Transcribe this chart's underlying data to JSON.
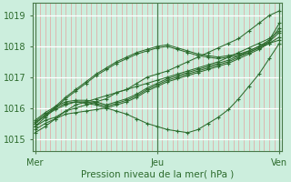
{
  "background_color": "#cceedd",
  "plot_bg_color": "#cceedd",
  "line_color": "#2d6b2d",
  "vline_color": "#4a7a4a",
  "minor_grid_color": "#e89090",
  "major_grid_color": "#ffffff",
  "xlabel_text": "Pression niveau de la mer( hPa )",
  "xtick_labels": [
    "Mer",
    "Jeu",
    "Ven"
  ],
  "xtick_positions": [
    0,
    48,
    96
  ],
  "ylim": [
    1014.6,
    1019.4
  ],
  "xlim": [
    -1,
    97
  ],
  "yticks": [
    1015,
    1016,
    1017,
    1018,
    1019
  ],
  "n_points": 25,
  "series": [
    [
      1015.4,
      1015.6,
      1015.7,
      1015.9,
      1016.0,
      1016.1,
      1016.2,
      1016.3,
      1016.5,
      1016.6,
      1016.8,
      1017.0,
      1017.1,
      1017.2,
      1017.35,
      1017.5,
      1017.65,
      1017.8,
      1017.95,
      1018.1,
      1018.25,
      1018.5,
      1018.75,
      1019.0,
      1019.15
    ],
    [
      1015.3,
      1015.5,
      1015.65,
      1015.8,
      1015.85,
      1015.9,
      1015.95,
      1016.0,
      1015.9,
      1015.8,
      1015.65,
      1015.5,
      1015.4,
      1015.3,
      1015.25,
      1015.2,
      1015.3,
      1015.5,
      1015.7,
      1015.95,
      1016.3,
      1016.7,
      1017.1,
      1017.6,
      1018.1
    ],
    [
      1015.5,
      1015.75,
      1015.95,
      1016.1,
      1016.2,
      1016.15,
      1016.1,
      1016.0,
      1016.1,
      1016.2,
      1016.35,
      1016.55,
      1016.7,
      1016.85,
      1016.95,
      1017.05,
      1017.15,
      1017.25,
      1017.35,
      1017.45,
      1017.6,
      1017.75,
      1017.9,
      1018.1,
      1018.2
    ],
    [
      1015.55,
      1015.8,
      1016.0,
      1016.15,
      1016.2,
      1016.2,
      1016.15,
      1016.05,
      1016.15,
      1016.25,
      1016.4,
      1016.6,
      1016.75,
      1016.9,
      1017.0,
      1017.1,
      1017.2,
      1017.3,
      1017.4,
      1017.5,
      1017.65,
      1017.8,
      1017.95,
      1018.15,
      1018.6
    ],
    [
      1015.6,
      1015.85,
      1016.05,
      1016.2,
      1016.25,
      1016.25,
      1016.2,
      1016.1,
      1016.2,
      1016.3,
      1016.45,
      1016.65,
      1016.8,
      1016.95,
      1017.05,
      1017.15,
      1017.25,
      1017.35,
      1017.45,
      1017.55,
      1017.7,
      1017.85,
      1018.0,
      1018.2,
      1018.75
    ],
    [
      1015.4,
      1015.7,
      1016.0,
      1016.3,
      1016.55,
      1016.8,
      1017.05,
      1017.25,
      1017.45,
      1017.6,
      1017.75,
      1017.85,
      1017.95,
      1018.0,
      1017.9,
      1017.8,
      1017.7,
      1017.65,
      1017.6,
      1017.65,
      1017.7,
      1017.8,
      1017.95,
      1018.1,
      1018.3
    ],
    [
      1015.5,
      1015.75,
      1016.05,
      1016.35,
      1016.6,
      1016.85,
      1017.1,
      1017.3,
      1017.5,
      1017.65,
      1017.8,
      1017.9,
      1018.0,
      1018.05,
      1017.95,
      1017.85,
      1017.75,
      1017.7,
      1017.65,
      1017.7,
      1017.75,
      1017.85,
      1018.0,
      1018.15,
      1018.45
    ],
    [
      1015.2,
      1015.4,
      1015.65,
      1015.9,
      1016.1,
      1016.2,
      1016.3,
      1016.4,
      1016.5,
      1016.6,
      1016.7,
      1016.8,
      1016.9,
      1017.0,
      1017.1,
      1017.2,
      1017.3,
      1017.4,
      1017.5,
      1017.65,
      1017.8,
      1017.95,
      1018.1,
      1018.25,
      1018.5
    ]
  ]
}
